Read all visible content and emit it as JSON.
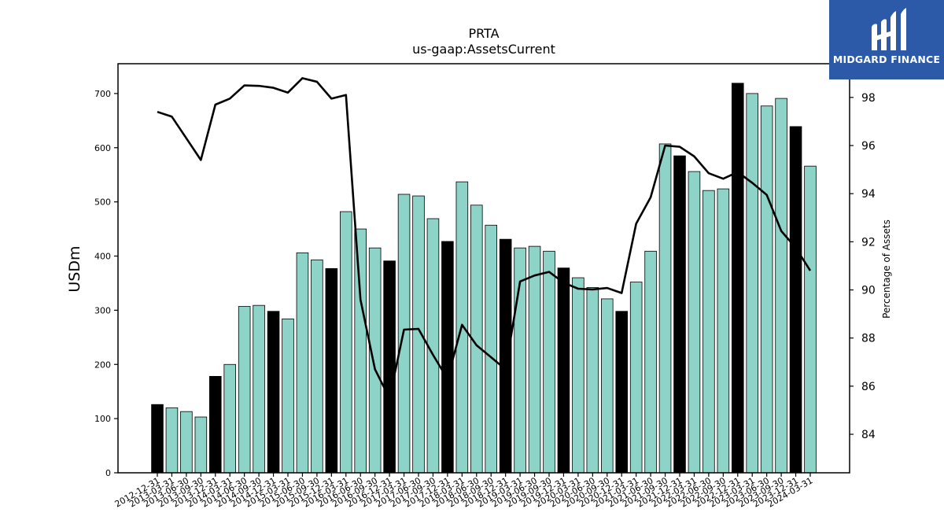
{
  "brand": {
    "name": "MIDGARD FINANCE",
    "bg_color": "#2c5aa8"
  },
  "chart_data": {
    "type": "bar",
    "title": "PRTA",
    "subtitle": "us-gaap:AssetsCurrent",
    "ylabel": "USDm",
    "y2label": "Percentage of Assets",
    "ylim": [
      0,
      755
    ],
    "y2lim": [
      82.4,
      99.4
    ],
    "yticks": [
      0,
      100,
      200,
      300,
      400,
      500,
      600,
      700
    ],
    "y2ticks": [
      84,
      86,
      88,
      90,
      92,
      94,
      96,
      98
    ],
    "categories": [
      "2012-12-31",
      "2013-03-31",
      "2013-06-30",
      "2013-09-30",
      "2013-12-31",
      "2014-03-31",
      "2014-06-30",
      "2014-09-30",
      "2014-12-31",
      "2015-03-31",
      "2015-06-30",
      "2015-09-30",
      "2015-12-31",
      "2016-03-31",
      "2016-06-30",
      "2016-09-30",
      "2016-12-31",
      "2017-03-31",
      "2017-06-30",
      "2017-09-30",
      "2017-12-31",
      "2018-03-31",
      "2018-06-30",
      "2018-09-30",
      "2018-12-31",
      "2019-03-31",
      "2019-06-30",
      "2019-09-30",
      "2019-12-31",
      "2020-03-31",
      "2020-06-30",
      "2020-09-30",
      "2020-12-31",
      "2021-03-31",
      "2021-06-30",
      "2021-09-30",
      "2021-12-31",
      "2022-03-31",
      "2022-06-30",
      "2022-09-30",
      "2022-12-31",
      "2023-03-31",
      "2023-06-30",
      "2023-09-30",
      "2023-12-31",
      "2024-03-31"
    ],
    "series": [
      {
        "type": "bar",
        "values": [
          126,
          120,
          113,
          103,
          178,
          200,
          307,
          309,
          298,
          284,
          406,
          393,
          377,
          482,
          450,
          415,
          391,
          514,
          511,
          469,
          427,
          537,
          494,
          457,
          431,
          415,
          418,
          409,
          378,
          360,
          342,
          321,
          298,
          352,
          409,
          607,
          585,
          556,
          521,
          524,
          719,
          700,
          677,
          691,
          639,
          566
        ],
        "annual_color": "#000000",
        "quarter_color": "#8dd3c7"
      },
      {
        "type": "line",
        "axis": "right",
        "values": [
          97.4,
          97.2,
          96.3,
          95.4,
          97.7,
          97.95,
          98.5,
          98.48,
          98.4,
          98.2,
          98.8,
          98.65,
          97.95,
          98.1,
          89.6,
          86.7,
          85.5,
          88.35,
          88.38,
          87.3,
          86.3,
          88.55,
          87.7,
          87.2,
          86.7,
          90.35,
          90.6,
          90.75,
          90.3,
          90.05,
          90.02,
          90.08,
          89.87,
          92.75,
          93.85,
          96.0,
          95.95,
          95.55,
          94.85,
          94.62,
          94.9,
          94.45,
          93.95,
          92.45,
          91.75,
          90.8
        ],
        "color": "#000000"
      }
    ],
    "annual_index_note": "Q4 bars drawn in black",
    "grid": false
  }
}
